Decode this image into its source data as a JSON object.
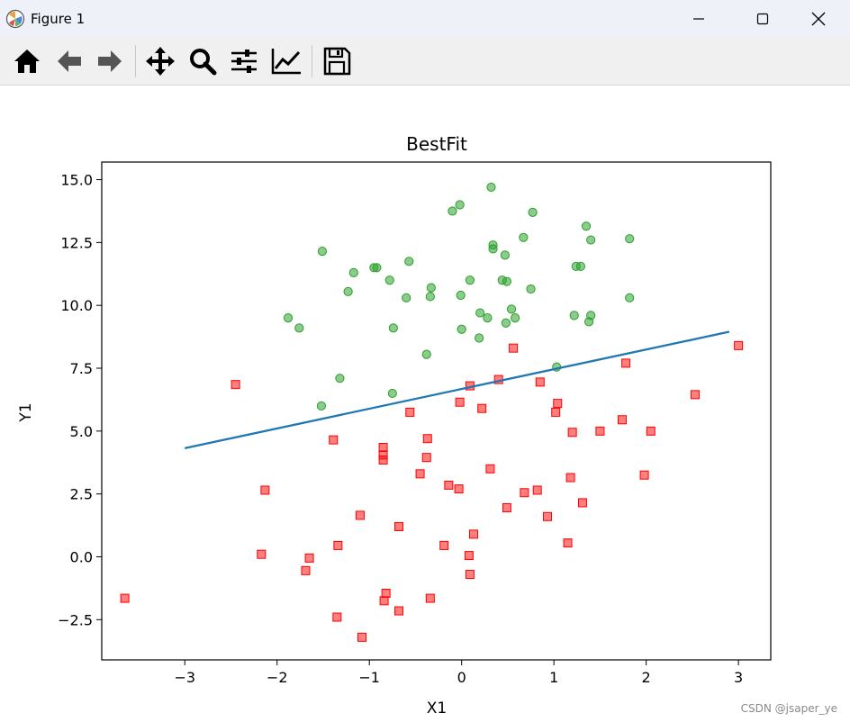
{
  "window": {
    "title": "Figure 1"
  },
  "toolbar": {
    "buttons": [
      {
        "icon": "home-icon"
      },
      {
        "icon": "back-arrow-icon"
      },
      {
        "icon": "forward-arrow-icon"
      },
      {
        "icon": "pan-move-icon"
      },
      {
        "icon": "zoom-magnifier-icon"
      },
      {
        "icon": "subplots-configure-icon"
      },
      {
        "icon": "edit-axis-icon"
      },
      {
        "icon": "save-floppy-icon"
      }
    ]
  },
  "chart_data": {
    "type": "scatter",
    "title": "BestFit",
    "xlabel": "X1",
    "ylabel": "Y1",
    "xlim": [
      -3.9,
      3.35
    ],
    "ylim": [
      -4.1,
      15.7
    ],
    "xticks": [
      -3,
      -2,
      -1,
      0,
      1,
      2,
      3
    ],
    "xtick_labels": [
      "−3",
      "−2",
      "−1",
      "0",
      "1",
      "2",
      "3"
    ],
    "yticks": [
      -2.5,
      0.0,
      2.5,
      5.0,
      7.5,
      10.0,
      12.5,
      15.0
    ],
    "ytick_labels": [
      "−2.5",
      "0.0",
      "2.5",
      "5.0",
      "7.5",
      "10.0",
      "12.5",
      "15.0"
    ],
    "grid": false,
    "colors": {
      "class1": "#2ca02c",
      "class0": "#ff0000",
      "fit_line": "#1f77b4"
    },
    "series": [
      {
        "marker": "circle",
        "color": "#2ca02c",
        "points": [
          [
            0.32,
            14.7
          ],
          [
            -0.02,
            14.0
          ],
          [
            -0.1,
            13.75
          ],
          [
            0.77,
            13.7
          ],
          [
            1.35,
            13.15
          ],
          [
            0.67,
            12.7
          ],
          [
            1.4,
            12.6
          ],
          [
            1.82,
            12.65
          ],
          [
            0.34,
            12.4
          ],
          [
            0.34,
            12.25
          ],
          [
            0.47,
            12.0
          ],
          [
            -1.51,
            12.15
          ],
          [
            -0.57,
            11.75
          ],
          [
            1.24,
            11.55
          ],
          [
            1.29,
            11.55
          ],
          [
            -0.95,
            11.5
          ],
          [
            -0.92,
            11.5
          ],
          [
            -1.17,
            11.3
          ],
          [
            0.44,
            11.0
          ],
          [
            0.49,
            10.95
          ],
          [
            -0.78,
            11.0
          ],
          [
            0.09,
            11.0
          ],
          [
            -0.33,
            10.7
          ],
          [
            0.75,
            10.65
          ],
          [
            -1.23,
            10.55
          ],
          [
            -0.6,
            10.3
          ],
          [
            -0.34,
            10.35
          ],
          [
            1.82,
            10.3
          ],
          [
            -0.01,
            10.4
          ],
          [
            0.54,
            9.85
          ],
          [
            0.2,
            9.7
          ],
          [
            0.28,
            9.5
          ],
          [
            0.58,
            9.5
          ],
          [
            0.48,
            9.3
          ],
          [
            1.22,
            9.6
          ],
          [
            1.4,
            9.6
          ],
          [
            1.38,
            9.35
          ],
          [
            -1.88,
            9.5
          ],
          [
            -1.76,
            9.1
          ],
          [
            -0.74,
            9.1
          ],
          [
            0.0,
            9.05
          ],
          [
            0.19,
            8.7
          ],
          [
            -0.38,
            8.05
          ],
          [
            1.03,
            7.55
          ],
          [
            -1.32,
            7.1
          ],
          [
            -0.75,
            6.5
          ],
          [
            -1.52,
            6.0
          ]
        ]
      },
      {
        "marker": "square",
        "color": "#ff0000",
        "points": [
          [
            3.0,
            8.4
          ],
          [
            0.56,
            8.3
          ],
          [
            1.78,
            7.7
          ],
          [
            0.4,
            7.05
          ],
          [
            0.85,
            6.95
          ],
          [
            0.09,
            6.8
          ],
          [
            -2.45,
            6.85
          ],
          [
            2.53,
            6.45
          ],
          [
            -0.02,
            6.15
          ],
          [
            1.04,
            6.1
          ],
          [
            0.22,
            5.9
          ],
          [
            1.02,
            5.75
          ],
          [
            -0.56,
            5.75
          ],
          [
            1.74,
            5.45
          ],
          [
            2.05,
            5.0
          ],
          [
            1.5,
            5.0
          ],
          [
            1.2,
            4.95
          ],
          [
            -0.37,
            4.7
          ],
          [
            -1.39,
            4.65
          ],
          [
            -0.85,
            4.35
          ],
          [
            -0.85,
            4.05
          ],
          [
            -0.85,
            3.85
          ],
          [
            -0.38,
            3.95
          ],
          [
            -0.45,
            3.3
          ],
          [
            0.31,
            3.5
          ],
          [
            1.18,
            3.15
          ],
          [
            1.98,
            3.25
          ],
          [
            -0.14,
            2.85
          ],
          [
            -0.03,
            2.7
          ],
          [
            -2.13,
            2.65
          ],
          [
            0.68,
            2.55
          ],
          [
            0.82,
            2.65
          ],
          [
            1.31,
            2.15
          ],
          [
            0.49,
            1.95
          ],
          [
            0.93,
            1.6
          ],
          [
            -1.1,
            1.65
          ],
          [
            -0.68,
            1.2
          ],
          [
            0.13,
            0.9
          ],
          [
            -0.19,
            0.45
          ],
          [
            1.15,
            0.55
          ],
          [
            -1.34,
            0.45
          ],
          [
            -2.17,
            0.1
          ],
          [
            0.08,
            0.05
          ],
          [
            -1.65,
            -0.05
          ],
          [
            -1.69,
            -0.55
          ],
          [
            0.09,
            -0.7
          ],
          [
            -0.34,
            -1.65
          ],
          [
            -0.82,
            -1.45
          ],
          [
            -0.84,
            -1.75
          ],
          [
            -3.65,
            -1.65
          ],
          [
            -0.68,
            -2.15
          ],
          [
            -1.35,
            -2.4
          ],
          [
            -1.08,
            -3.2
          ]
        ]
      }
    ],
    "fit_line": {
      "x": [
        -3.0,
        2.9
      ],
      "y": [
        4.32,
        8.95
      ],
      "color": "#1f77b4"
    }
  },
  "watermark": "CSDN @jsaper_ye"
}
